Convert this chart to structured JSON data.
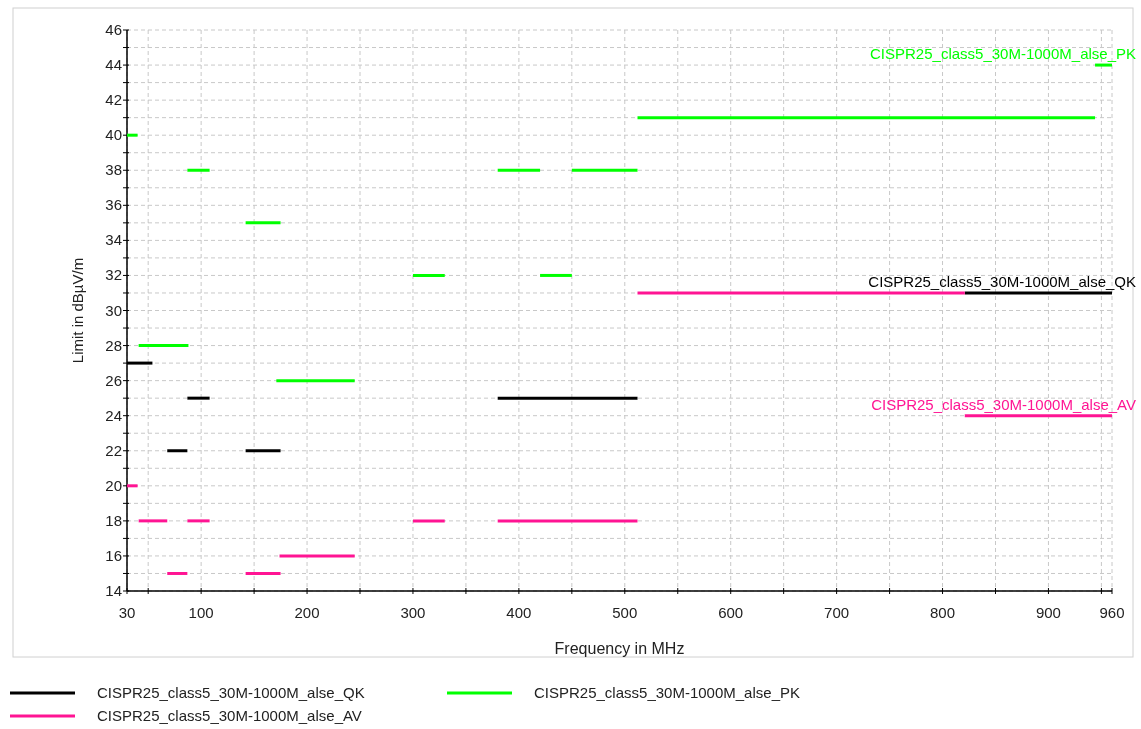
{
  "chart_data": {
    "type": "line",
    "xlabel": "Frequency in MHz",
    "ylabel": "Limit in dBµV/m",
    "xlim": [
      30,
      960
    ],
    "ylim": [
      14,
      46
    ],
    "xticks": [
      30,
      {
        "value": 50,
        "label": null
      },
      100,
      {
        "value": 150,
        "label": null
      },
      200,
      {
        "value": 250,
        "label": null
      },
      300,
      {
        "value": 350,
        "label": null
      },
      400,
      {
        "value": 450,
        "label": null
      },
      500,
      {
        "value": 550,
        "label": null
      },
      600,
      {
        "value": 650,
        "label": null
      },
      700,
      {
        "value": 750,
        "label": null
      },
      800,
      {
        "value": 850,
        "label": null
      },
      900,
      {
        "value": 950,
        "label": null
      },
      960
    ],
    "yticks": [
      14,
      {
        "value": 15,
        "label": null
      },
      16,
      {
        "value": 17,
        "label": null
      },
      18,
      {
        "value": 19,
        "label": null
      },
      20,
      {
        "value": 21,
        "label": null
      },
      22,
      {
        "value": 23,
        "label": null
      },
      24,
      {
        "value": 25,
        "label": null
      },
      26,
      {
        "value": 27,
        "label": null
      },
      28,
      {
        "value": 29,
        "label": null
      },
      30,
      {
        "value": 31,
        "label": null
      },
      32,
      {
        "value": 33,
        "label": null
      },
      34,
      {
        "value": 35,
        "label": null
      },
      36,
      {
        "value": 37,
        "label": null
      },
      38,
      {
        "value": 39,
        "label": null
      },
      40,
      {
        "value": 41,
        "label": null
      },
      42,
      {
        "value": 43,
        "label": null
      },
      44,
      {
        "value": 45,
        "label": null
      },
      46
    ],
    "grid": true,
    "legend": "bottom",
    "series": [
      {
        "color": "#000000",
        "x": [
          30,
          54
        ],
        "values": [
          27,
          27
        ]
      },
      {
        "color": "#000000",
        "x": [
          68,
          87
        ],
        "values": [
          22,
          22
        ]
      },
      {
        "color": "#000000",
        "x": [
          87,
          108
        ],
        "values": [
          25,
          25
        ]
      },
      {
        "color": "#000000",
        "x": [
          142,
          175
        ],
        "values": [
          22,
          22
        ]
      },
      {
        "color": "#000000",
        "x": [
          380,
          512
        ],
        "values": [
          25,
          25
        ]
      },
      {
        "name": "CISPR25_class5_30M-1000M_alse_QK",
        "color": "#000000",
        "x": [
          821,
          960
        ],
        "values": [
          31,
          31
        ]
      },
      {
        "color": "#00ff00",
        "x": [
          30,
          40
        ],
        "values": [
          40,
          40
        ]
      },
      {
        "color": "#00ff00",
        "x": [
          41,
          88
        ],
        "values": [
          28,
          28
        ]
      },
      {
        "color": "#00ff00",
        "x": [
          87,
          108
        ],
        "values": [
          38,
          38
        ]
      },
      {
        "color": "#00ff00",
        "x": [
          142,
          175
        ],
        "values": [
          35,
          35
        ]
      },
      {
        "color": "#00ff00",
        "x": [
          171,
          245
        ],
        "values": [
          26,
          26
        ]
      },
      {
        "color": "#00ff00",
        "x": [
          300,
          330
        ],
        "values": [
          32,
          32
        ]
      },
      {
        "color": "#00ff00",
        "x": [
          380,
          420
        ],
        "values": [
          38,
          38
        ]
      },
      {
        "color": "#00ff00",
        "x": [
          420,
          450
        ],
        "values": [
          32,
          32
        ]
      },
      {
        "color": "#00ff00",
        "x": [
          450,
          512
        ],
        "values": [
          38,
          38
        ]
      },
      {
        "color": "#00ff00",
        "x": [
          512,
          944
        ],
        "values": [
          41,
          41
        ]
      },
      {
        "name": "CISPR25_class5_30M-1000M_alse_PK",
        "color": "#00ff00",
        "x": [
          944,
          960
        ],
        "values": [
          44,
          44
        ]
      },
      {
        "color": "#ff1493",
        "x": [
          30,
          40
        ],
        "values": [
          20,
          20
        ]
      },
      {
        "color": "#ff1493",
        "x": [
          41,
          68
        ],
        "values": [
          18,
          18
        ]
      },
      {
        "color": "#ff1493",
        "x": [
          68,
          87
        ],
        "values": [
          15,
          15
        ]
      },
      {
        "color": "#ff1493",
        "x": [
          87,
          108
        ],
        "values": [
          18,
          18
        ]
      },
      {
        "color": "#ff1493",
        "x": [
          142,
          175
        ],
        "values": [
          15,
          15
        ]
      },
      {
        "color": "#ff1493",
        "x": [
          174,
          245
        ],
        "values": [
          16,
          16
        ]
      },
      {
        "color": "#ff1493",
        "x": [
          300,
          330
        ],
        "values": [
          18,
          18
        ]
      },
      {
        "color": "#ff1493",
        "x": [
          380,
          512
        ],
        "values": [
          18,
          18
        ]
      },
      {
        "color": "#ff1493",
        "x": [
          512,
          821
        ],
        "values": [
          31,
          31
        ]
      },
      {
        "name": "CISPR25_class5_30M-1000M_alse_AV",
        "color": "#ff1493",
        "x": [
          821,
          960
        ],
        "values": [
          24,
          24
        ]
      }
    ]
  }
}
